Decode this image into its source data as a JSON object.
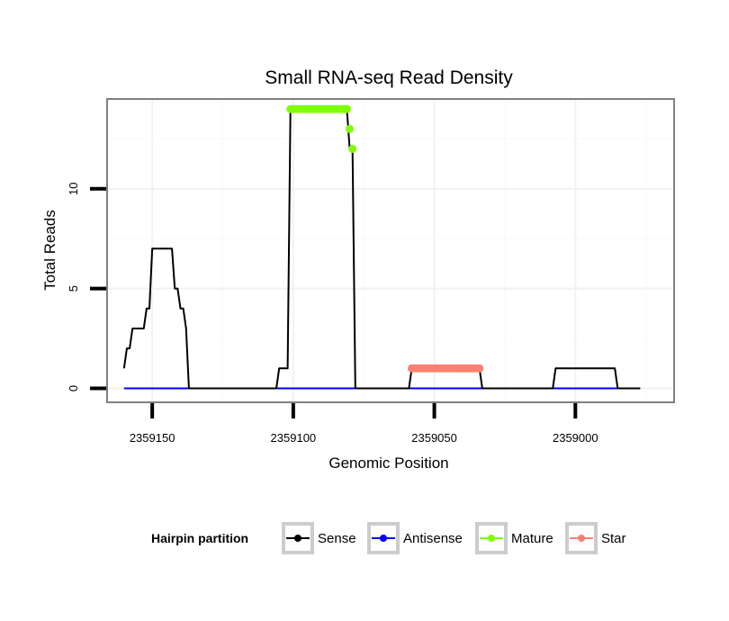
{
  "chart_data": {
    "type": "line",
    "title": "Small RNA-seq Read Density",
    "xlabel": "Genomic Position",
    "ylabel": "Total Reads",
    "x_reversed": true,
    "xlim": [
      2359166,
      2358965
    ],
    "ylim": [
      -0.7,
      14.5
    ],
    "x_ticks": [
      2359150,
      2359100,
      2359050,
      2359000
    ],
    "x_tick_labels": [
      "2359150",
      "2359100",
      "2359050",
      "2359000"
    ],
    "y_ticks": [
      0,
      5,
      10
    ],
    "y_tick_labels": [
      "0",
      "5",
      "10"
    ],
    "grid": true,
    "legend": {
      "title": "Hairpin partition",
      "position": "bottom",
      "items": [
        {
          "label": "Sense",
          "color": "#000000"
        },
        {
          "label": "Antisense",
          "color": "#0000ff"
        },
        {
          "label": "Mature",
          "color": "#7fff00"
        },
        {
          "label": "Star",
          "color": "#fa8072"
        }
      ]
    },
    "series": [
      {
        "name": "Sense",
        "color": "#000000",
        "x": [
          2359160,
          2359159,
          2359158,
          2359157,
          2359154,
          2359153,
          2359152,
          2359151,
          2359150,
          2359149,
          2359148,
          2359143,
          2359142,
          2359141,
          2359140,
          2359139,
          2359138,
          2359137,
          2359127,
          2359106,
          2359105,
          2359102,
          2359101,
          2359081,
          2359080,
          2359079,
          2359078,
          2359059,
          2359058,
          2359034,
          2359033,
          2359008,
          2359007,
          2358986,
          2358985,
          2358977
        ],
        "y": [
          1,
          2,
          2,
          3,
          3,
          3,
          4,
          4,
          7,
          7,
          7,
          7,
          5,
          5,
          4,
          4,
          3,
          0,
          0,
          0,
          1,
          1,
          14,
          14,
          12,
          12,
          0,
          0,
          1,
          1,
          0,
          0,
          1,
          1,
          0,
          0
        ]
      },
      {
        "name": "Antisense",
        "color": "#0000ff",
        "x": [
          2359160,
          2358985
        ],
        "y": [
          0,
          0
        ]
      },
      {
        "name": "Mature",
        "color": "#7fff00",
        "x": [
          2359101,
          2359100,
          2359099,
          2359098,
          2359097,
          2359096,
          2359095,
          2359094,
          2359093,
          2359092,
          2359091,
          2359090,
          2359089,
          2359088,
          2359087,
          2359086,
          2359085,
          2359084,
          2359083,
          2359082,
          2359081,
          2359080,
          2359079
        ],
        "y": [
          14,
          14,
          14,
          14,
          14,
          14,
          14,
          14,
          14,
          14,
          14,
          14,
          14,
          14,
          14,
          14,
          14,
          14,
          14,
          14,
          14,
          13,
          12
        ]
      },
      {
        "name": "Star",
        "color": "#fa8072",
        "x": [
          2359058,
          2359057,
          2359056,
          2359055,
          2359054,
          2359053,
          2359052,
          2359051,
          2359050,
          2359049,
          2359048,
          2359047,
          2359046,
          2359045,
          2359044,
          2359043,
          2359042,
          2359041,
          2359040,
          2359039,
          2359038,
          2359037,
          2359036,
          2359035,
          2359034
        ],
        "y": [
          1,
          1,
          1,
          1,
          1,
          1,
          1,
          1,
          1,
          1,
          1,
          1,
          1,
          1,
          1,
          1,
          1,
          1,
          1,
          1,
          1,
          1,
          1,
          1,
          1
        ]
      }
    ]
  }
}
